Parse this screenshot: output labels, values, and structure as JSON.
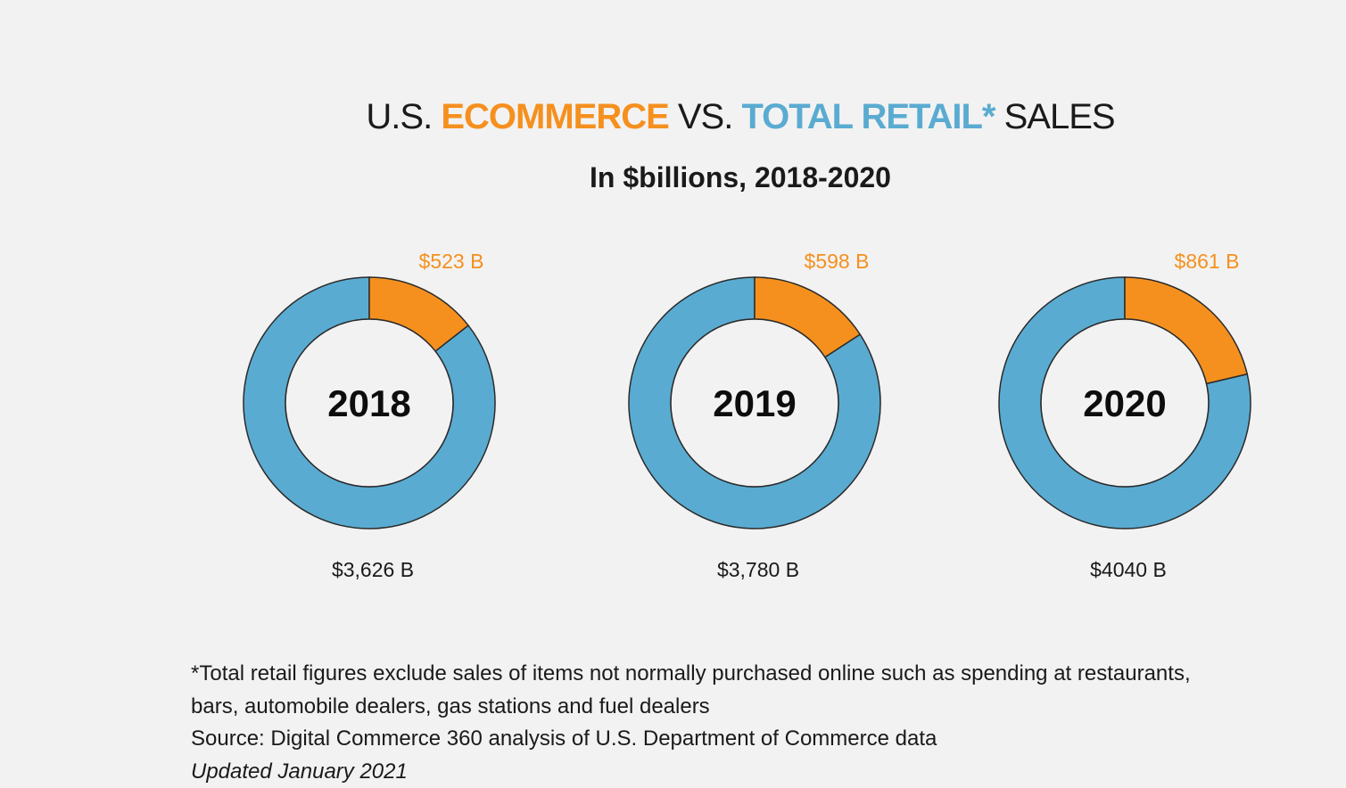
{
  "title": {
    "part1": "U.S. ",
    "part2": "ECOMMERCE",
    "part3": " VS. ",
    "part4": "TOTAL RETAIL*",
    "part5": " SALES"
  },
  "subtitle": "In $billions, 2018-2020",
  "colors": {
    "ecommerce": "#f5901e",
    "total_retail": "#5aabd1",
    "inner": "#f2f2f2",
    "stroke": "#2b2b2b"
  },
  "chart_data": [
    {
      "type": "pie",
      "center_label": "2018",
      "series": [
        {
          "label": "$523 B",
          "value": 523
        },
        {
          "label": "$3,626 B",
          "value": 3626
        }
      ]
    },
    {
      "type": "pie",
      "center_label": "2019",
      "series": [
        {
          "label": "$598 B",
          "value": 598
        },
        {
          "label": "$3,780 B",
          "value": 3780
        }
      ]
    },
    {
      "type": "pie",
      "center_label": "2020",
      "series": [
        {
          "label": "$861 B",
          "value": 861
        },
        {
          "label": "$4040 B",
          "value": 4040
        }
      ]
    }
  ],
  "footnotes": {
    "line1": "*Total retail figures exclude sales of items not normally purchased online such as spending at restaurants,",
    "line2": "bars, automobile dealers, gas stations and fuel dealers",
    "source": "Source: Digital Commerce 360 analysis of U.S. Department of Commerce data",
    "updated": "Updated January 2021"
  }
}
